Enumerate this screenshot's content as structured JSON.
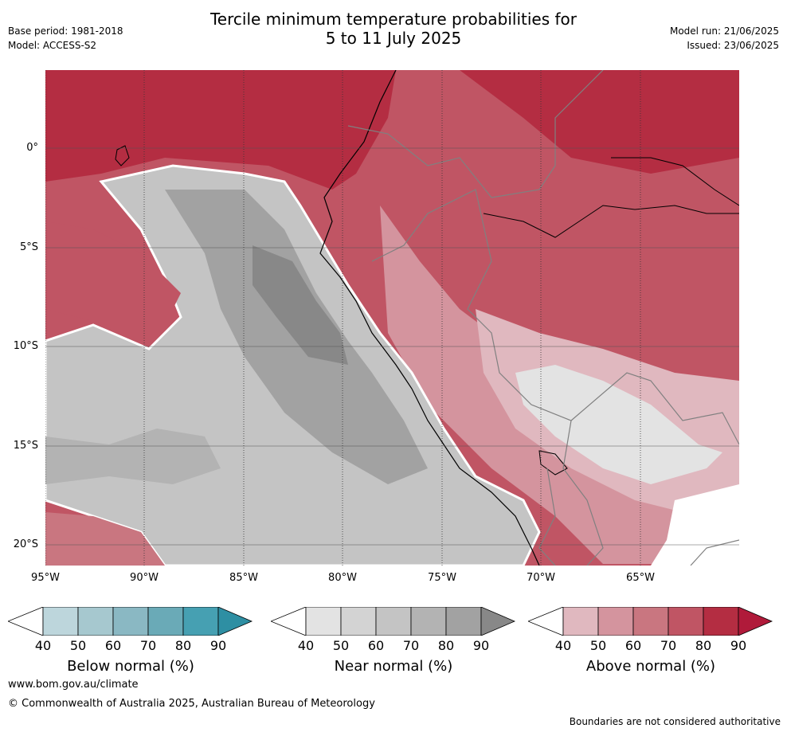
{
  "header": {
    "base_period": "Base period: 1981-2018",
    "model": "Model: ACCESS-S2",
    "title_line1": "Tercile minimum temperature probabilities for",
    "title_line2": "5 to 11 July 2025",
    "model_run": "Model run: 21/06/2025",
    "issued": "Issued: 23/06/2025"
  },
  "map": {
    "lat_labels": [
      "0°",
      "5°S",
      "10°S",
      "15°S",
      "20°S"
    ],
    "lon_labels": [
      "95°W",
      "90°W",
      "85°W",
      "80°W",
      "75°W",
      "70°W",
      "65°W"
    ]
  },
  "colorbars": [
    {
      "name": "below",
      "caption": "Below normal (%)",
      "ticks": [
        "40",
        "50",
        "60",
        "70",
        "80",
        "90"
      ],
      "colors": [
        "#ffffff",
        "#bdd6dc",
        "#a6c8cf",
        "#8ab8c3",
        "#6aaab7",
        "#46a0b2",
        "#2e8fa3"
      ]
    },
    {
      "name": "near",
      "caption": "Near normal (%)",
      "ticks": [
        "40",
        "50",
        "60",
        "70",
        "80",
        "90"
      ],
      "colors": [
        "#ffffff",
        "#e3e3e3",
        "#d3d3d3",
        "#c4c4c4",
        "#b3b3b3",
        "#a2a2a2",
        "#888888"
      ]
    },
    {
      "name": "above",
      "caption": "Above normal (%)",
      "ticks": [
        "40",
        "50",
        "60",
        "70",
        "80",
        "90"
      ],
      "colors": [
        "#ffffff",
        "#e0b8bf",
        "#d4949e",
        "#c97680",
        "#c05564",
        "#b42d42",
        "#b01a3a"
      ]
    }
  ],
  "footer": {
    "url": "www.bom.gov.au/climate",
    "copyright": "© Commonwealth of Australia 2025, Australian Bureau of Meteorology",
    "disclaimer": "Boundaries are not considered authoritative"
  }
}
